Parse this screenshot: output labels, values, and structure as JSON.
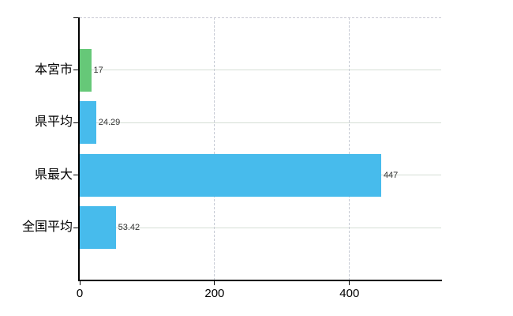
{
  "chart_data": {
    "type": "bar",
    "orientation": "horizontal",
    "title": "",
    "xlabel": "",
    "ylabel": "",
    "categories": [
      "本宮市",
      "県平均",
      "県最大",
      "全国平均"
    ],
    "values": [
      17,
      24.29,
      447,
      53.42
    ],
    "value_labels": [
      "17",
      "24.29",
      "447",
      "53.42"
    ],
    "series": [
      {
        "name": "",
        "values": [
          17,
          24.29,
          447,
          53.42
        ]
      }
    ],
    "bar_colors": [
      "#66c878",
      "#47bbec",
      "#47bbec",
      "#47bbec"
    ],
    "x_ticks": [
      0,
      200,
      400
    ],
    "x_tick_labels": [
      "0",
      "200",
      "400"
    ],
    "xlim": [
      0,
      536
    ],
    "grid": true,
    "legend_position": "none"
  },
  "colors": {
    "green_bar": "#66c878",
    "blue_bar": "#47bbec",
    "h_gridline": "#d5ded5",
    "v_gridline": "#c6cad4",
    "top_border": "#c8c8d2",
    "axis": "#000000",
    "value_text": "#333333",
    "label_text": "#000000",
    "background": "#ffffff"
  }
}
